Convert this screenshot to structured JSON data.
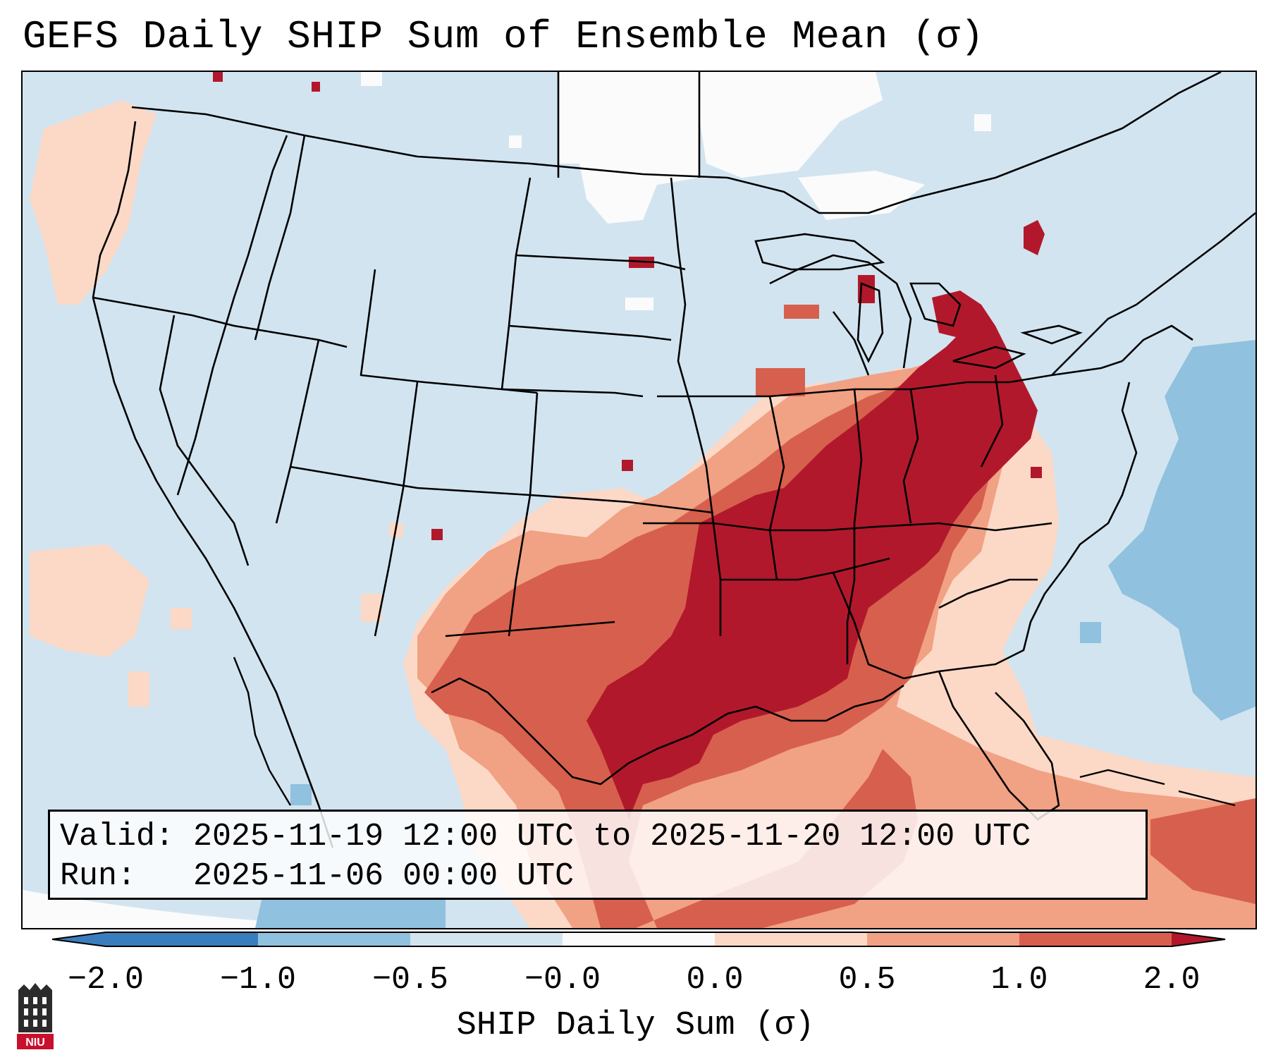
{
  "title": "GEFS Daily SHIP Sum of Ensemble Mean (σ)",
  "info": {
    "valid_label": "Valid:",
    "valid_value": "2025-11-19 12:00 UTC to 2025-11-20 12:00 UTC",
    "run_label": "Run:",
    "run_value": "2025-11-06 00:00 UTC"
  },
  "colorbar": {
    "label": "SHIP Daily Sum (σ)",
    "ticks": [
      "−2.0",
      "−1.0",
      "−0.5",
      "−0.0",
      "0.0",
      "0.5",
      "1.0",
      "2.0"
    ],
    "colors": [
      "#3a7dbd",
      "#90c1de",
      "#d2e4f0",
      "#fbfbfb",
      "#fcd9c6",
      "#f1a184",
      "#d6604d",
      "#b2182b"
    ]
  },
  "logo": {
    "text": "NIU",
    "name": "niu-logo"
  },
  "map": {
    "region": "Contiguous United States",
    "field": "SHIP daily sum anomaly",
    "max_anomaly_region": "Mid-Mississippi and Ohio Valleys"
  }
}
